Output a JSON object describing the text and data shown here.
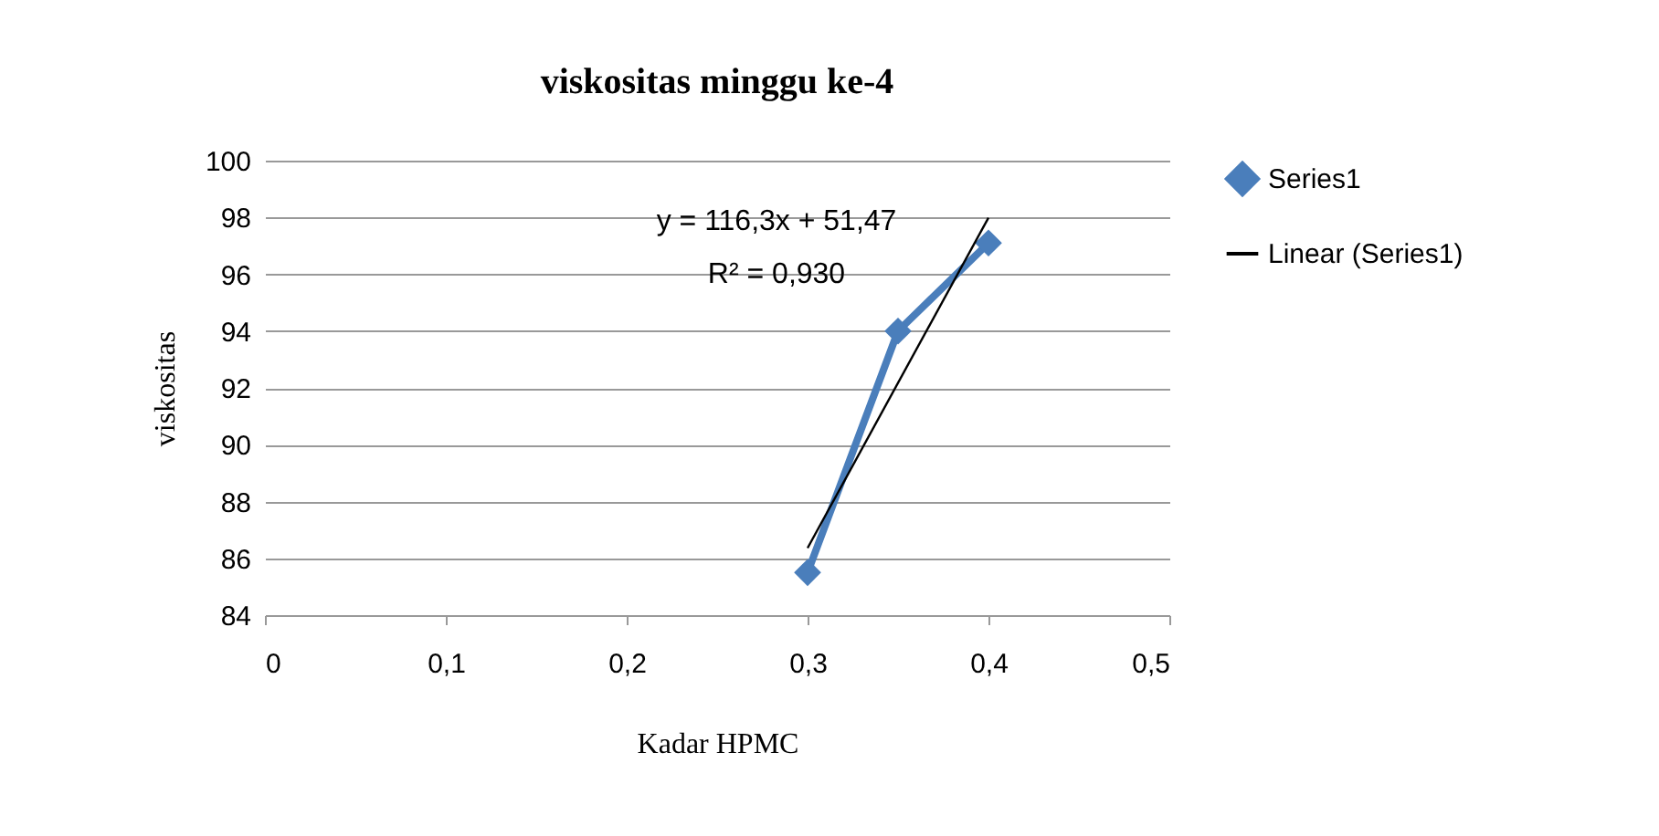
{
  "chart_data": {
    "type": "line",
    "title": "viskositas minggu ke-4",
    "xlabel": "Kadar HPMC",
    "ylabel": "viskositas",
    "x": [
      0.3,
      0.35,
      0.4
    ],
    "series": [
      {
        "name": "Series1",
        "color": "#4a7ebb",
        "values": [
          85.5,
          94,
          97.1
        ]
      },
      {
        "name": "Linear (Series1)",
        "type": "line",
        "color": "#000000",
        "x": [
          0.3,
          0.4
        ],
        "values": [
          86.36,
          97.99
        ],
        "marker": "none"
      }
    ],
    "annotations": [
      "y = 116,3x + 51,47",
      "R² = 0,930"
    ],
    "xlim": [
      0,
      0.5
    ],
    "xticks": [
      {
        "value": 0,
        "label": "0"
      },
      {
        "value": 0.1,
        "label": "0,1"
      },
      {
        "value": 0.2,
        "label": "0,2"
      },
      {
        "value": 0.3,
        "label": "0,3"
      },
      {
        "value": 0.4,
        "label": "0,4"
      },
      {
        "value": 0.5,
        "label": "0,5"
      }
    ],
    "ylim": [
      84,
      100
    ],
    "yticks": [
      84,
      86,
      88,
      90,
      92,
      94,
      96,
      98,
      100
    ],
    "grid": "y",
    "legend": "right",
    "marker": "diamond",
    "line_style": "solid"
  }
}
